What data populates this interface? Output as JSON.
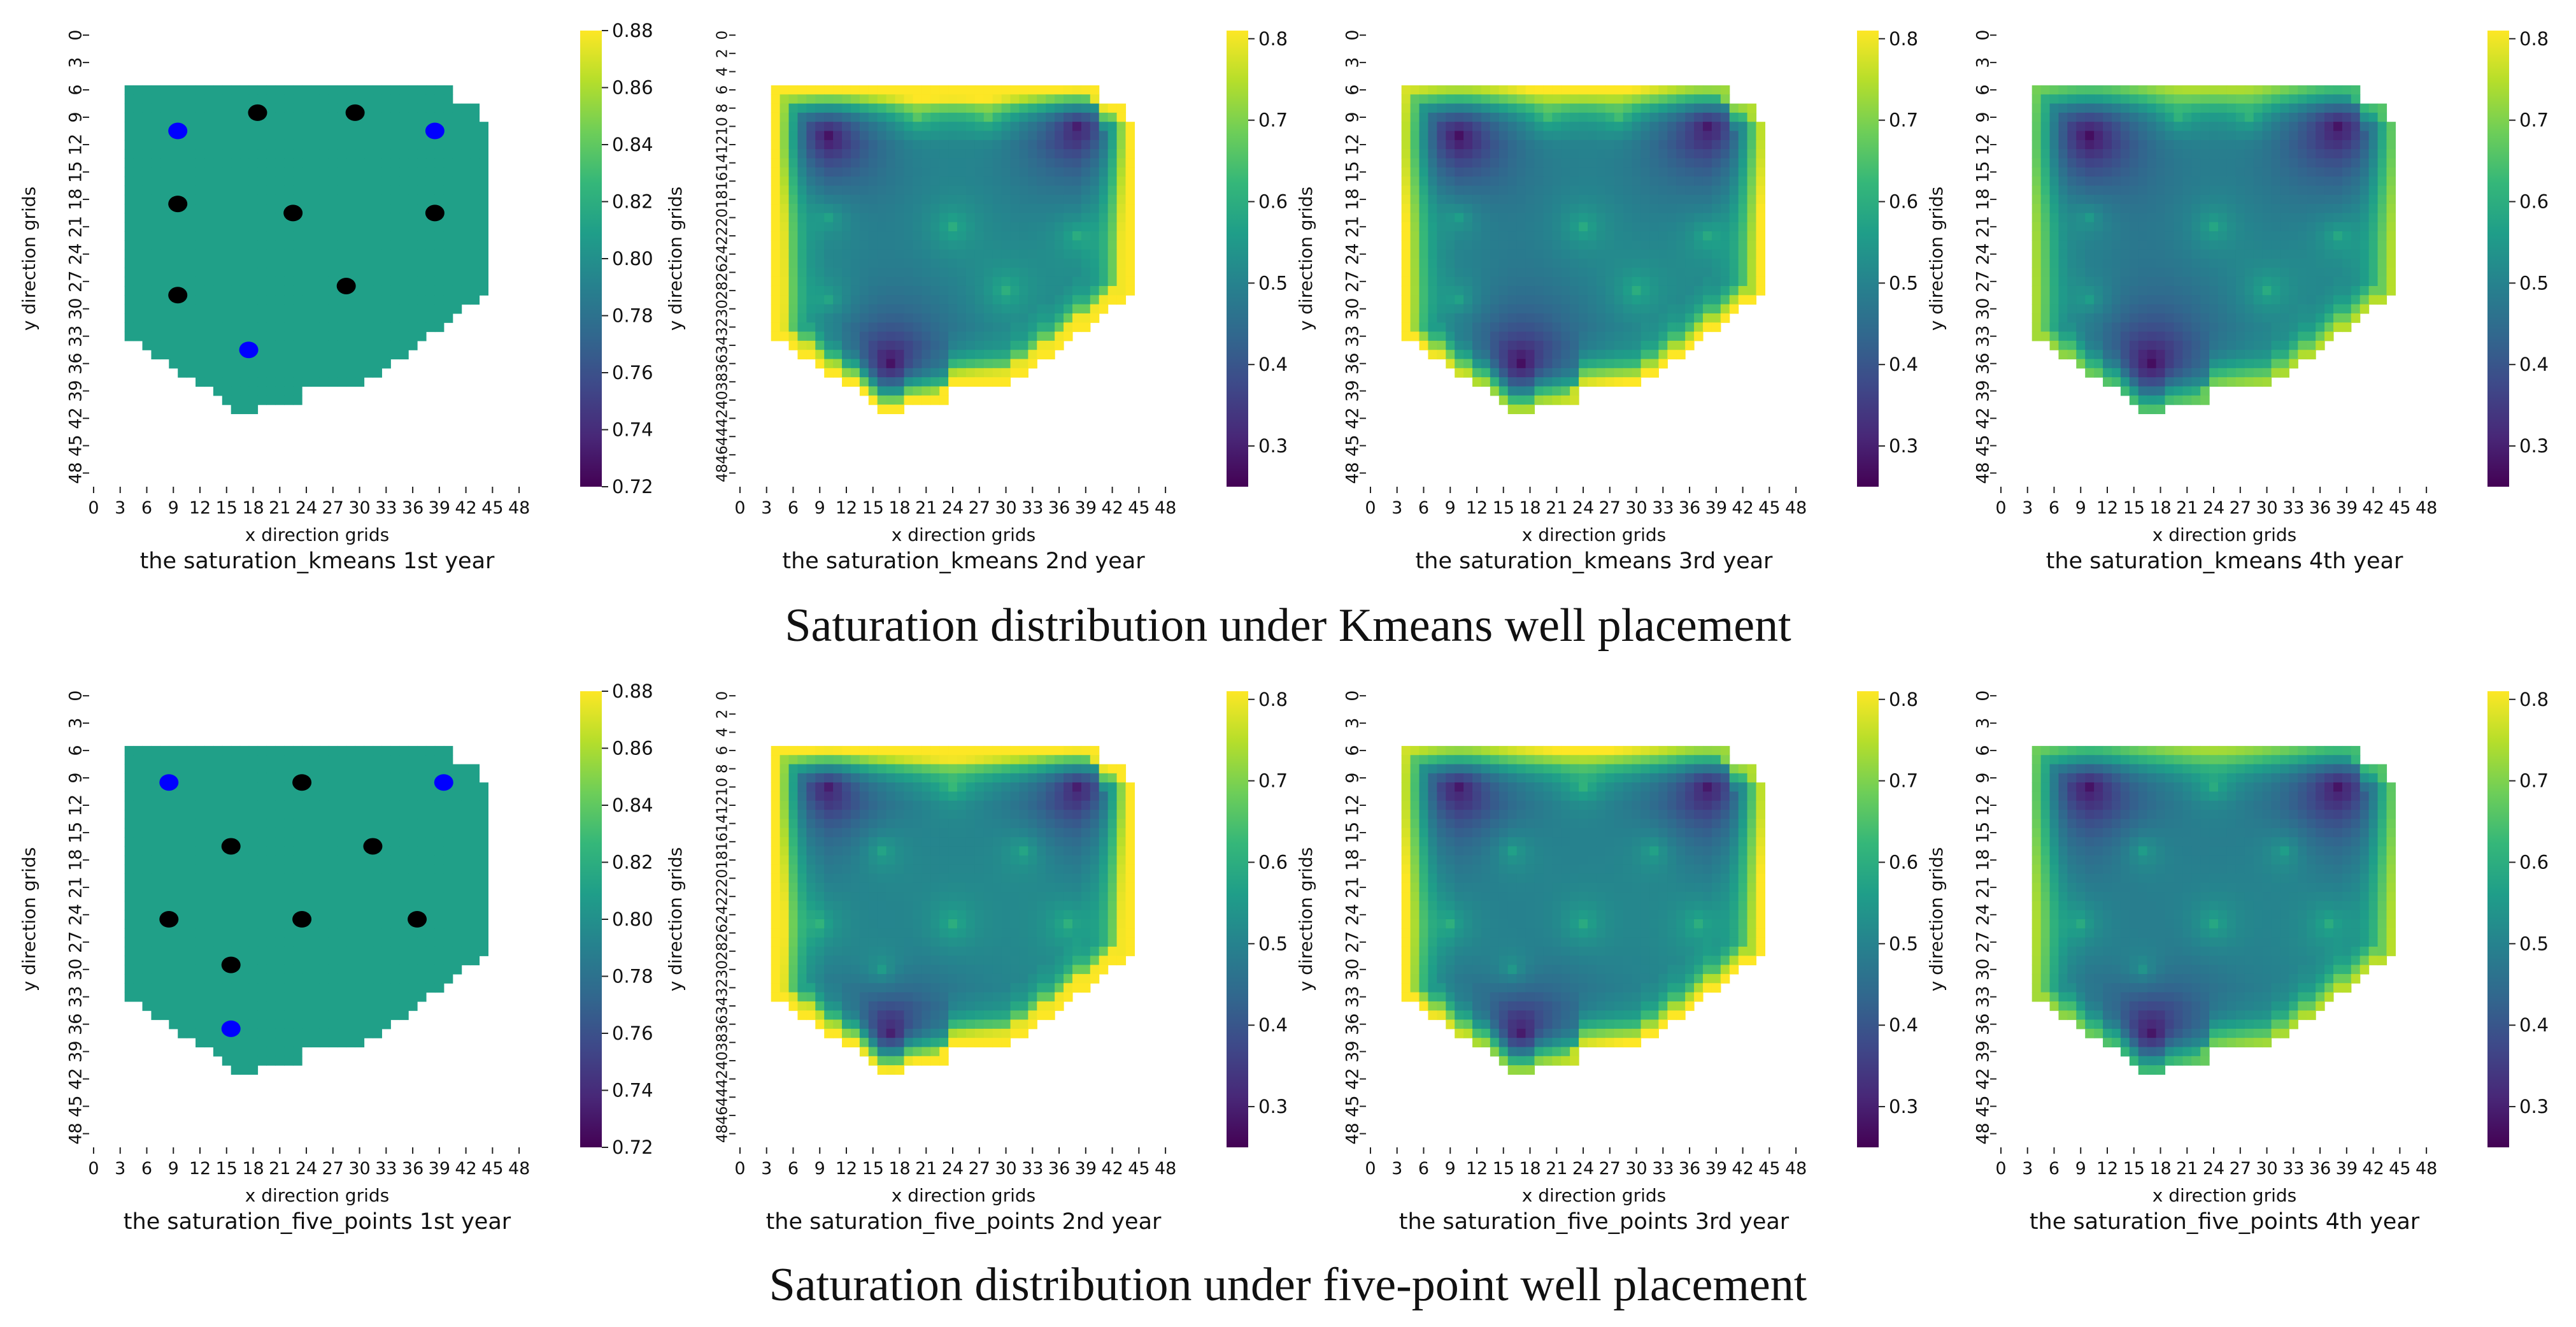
{
  "row_captions": [
    "Saturation distribution under Kmeans well placement",
    "Saturation distribution under five-point well placement"
  ],
  "colormap": [
    "#440154",
    "#482878",
    "#3e4989",
    "#31688e",
    "#26828e",
    "#1f9e89",
    "#35b779",
    "#6ece58",
    "#b5de2b",
    "#fde725"
  ],
  "well_colors": {
    "injector": "#0000ff",
    "producer": "#000000"
  },
  "chart_data": [
    {
      "type": "heatmap",
      "title": "the saturation_kmeans 1st year",
      "xlabel": "x direction grids",
      "ylabel": "y direction grids",
      "xticks": [
        "0",
        "3",
        "6",
        "9",
        "12",
        "15",
        "18",
        "21",
        "24",
        "27",
        "30",
        "33",
        "36",
        "39",
        "42",
        "45",
        "48"
      ],
      "yticks": [
        "0",
        "3",
        "6",
        "9",
        "12",
        "15",
        "18",
        "21",
        "24",
        "27",
        "30",
        "33",
        "36",
        "39",
        "42",
        "45",
        "48"
      ],
      "colorbar": {
        "ticks": [
          "0.88",
          "0.86",
          "0.84",
          "0.82",
          "0.80",
          "0.78",
          "0.76",
          "0.74",
          "0.72"
        ],
        "vmin": 0.72,
        "vmax": 0.88
      },
      "uniform_value": 0.81,
      "wells": {
        "injectors": [
          [
            10,
            11
          ],
          [
            39,
            11
          ],
          [
            18,
            35
          ]
        ],
        "producers": [
          [
            19,
            9
          ],
          [
            30,
            9
          ],
          [
            10,
            19
          ],
          [
            23,
            20
          ],
          [
            39,
            20
          ],
          [
            10,
            29
          ],
          [
            29,
            28
          ]
        ]
      }
    },
    {
      "type": "heatmap",
      "title": "the saturation_kmeans 2nd year",
      "xlabel": "x direction grids",
      "ylabel": "y direction grids",
      "xticks": [
        "0",
        "3",
        "6",
        "9",
        "12",
        "15",
        "18",
        "21",
        "24",
        "27",
        "30",
        "33",
        "36",
        "39",
        "42",
        "45",
        "48"
      ],
      "yticks": [
        "0",
        "2",
        "4",
        "6",
        "8",
        "10",
        "12",
        "14",
        "16",
        "18",
        "20",
        "22",
        "24",
        "26",
        "28",
        "30",
        "32",
        "34",
        "36",
        "38",
        "40",
        "42",
        "44",
        "46",
        "48"
      ],
      "colorbar": {
        "ticks": [
          "0.8",
          "0.7",
          "0.6",
          "0.5",
          "0.4",
          "0.3"
        ],
        "vmin": 0.25,
        "vmax": 0.81
      },
      "injectors": [
        [
          10,
          11
        ],
        [
          38,
          10
        ],
        [
          17,
          36
        ]
      ],
      "producers": [
        [
          20,
          9
        ],
        [
          28,
          9
        ],
        [
          10,
          20
        ],
        [
          24,
          21
        ],
        [
          38,
          22
        ],
        [
          10,
          29
        ],
        [
          30,
          28
        ]
      ],
      "year": 2
    },
    {
      "type": "heatmap",
      "title": "the saturation_kmeans 3rd year",
      "xlabel": "x direction grids",
      "ylabel": "y direction grids",
      "xticks": [
        "0",
        "3",
        "6",
        "9",
        "12",
        "15",
        "18",
        "21",
        "24",
        "27",
        "30",
        "33",
        "36",
        "39",
        "42",
        "45",
        "48"
      ],
      "yticks": [
        "0",
        "3",
        "6",
        "9",
        "12",
        "15",
        "18",
        "21",
        "24",
        "27",
        "30",
        "33",
        "36",
        "39",
        "42",
        "45",
        "48"
      ],
      "colorbar": {
        "ticks": [
          "0.8",
          "0.7",
          "0.6",
          "0.5",
          "0.4",
          "0.3"
        ],
        "vmin": 0.25,
        "vmax": 0.81
      },
      "injectors": [
        [
          10,
          11
        ],
        [
          38,
          10
        ],
        [
          17,
          36
        ]
      ],
      "producers": [
        [
          20,
          9
        ],
        [
          28,
          9
        ],
        [
          10,
          20
        ],
        [
          24,
          21
        ],
        [
          38,
          22
        ],
        [
          10,
          29
        ],
        [
          30,
          28
        ]
      ],
      "year": 3
    },
    {
      "type": "heatmap",
      "title": "the saturation_kmeans 4th year",
      "xlabel": "x direction grids",
      "ylabel": "y direction grids",
      "xticks": [
        "0",
        "3",
        "6",
        "9",
        "12",
        "15",
        "18",
        "21",
        "24",
        "27",
        "30",
        "33",
        "36",
        "39",
        "42",
        "45",
        "48"
      ],
      "yticks": [
        "0",
        "3",
        "6",
        "9",
        "12",
        "15",
        "18",
        "21",
        "24",
        "27",
        "30",
        "33",
        "36",
        "39",
        "42",
        "45",
        "48"
      ],
      "colorbar": {
        "ticks": [
          "0.8",
          "0.7",
          "0.6",
          "0.5",
          "0.4",
          "0.3"
        ],
        "vmin": 0.25,
        "vmax": 0.81
      },
      "injectors": [
        [
          10,
          11
        ],
        [
          38,
          10
        ],
        [
          17,
          36
        ]
      ],
      "producers": [
        [
          20,
          9
        ],
        [
          28,
          9
        ],
        [
          10,
          20
        ],
        [
          24,
          21
        ],
        [
          38,
          22
        ],
        [
          10,
          29
        ],
        [
          30,
          28
        ]
      ],
      "year": 4
    },
    {
      "type": "heatmap",
      "title": "the saturation_five_points 1st year",
      "xlabel": "x direction grids",
      "ylabel": "y direction grids",
      "xticks": [
        "0",
        "3",
        "6",
        "9",
        "12",
        "15",
        "18",
        "21",
        "24",
        "27",
        "30",
        "33",
        "36",
        "39",
        "42",
        "45",
        "48"
      ],
      "yticks": [
        "0",
        "3",
        "6",
        "9",
        "12",
        "15",
        "18",
        "21",
        "24",
        "27",
        "30",
        "33",
        "36",
        "39",
        "42",
        "45",
        "48"
      ],
      "colorbar": {
        "ticks": [
          "0.88",
          "0.86",
          "0.84",
          "0.82",
          "0.80",
          "0.78",
          "0.76",
          "0.74",
          "0.72"
        ],
        "vmin": 0.72,
        "vmax": 0.88
      },
      "uniform_value": 0.81,
      "wells": {
        "injectors": [
          [
            9,
            10
          ],
          [
            40,
            10
          ],
          [
            16,
            37
          ]
        ],
        "producers": [
          [
            24,
            10
          ],
          [
            16,
            17
          ],
          [
            32,
            17
          ],
          [
            9,
            25
          ],
          [
            24,
            25
          ],
          [
            37,
            25
          ],
          [
            16,
            30
          ]
        ]
      }
    },
    {
      "type": "heatmap",
      "title": "the saturation_five_points 2nd year",
      "xlabel": "x direction grids",
      "ylabel": "y direction grids",
      "xticks": [
        "0",
        "3",
        "6",
        "9",
        "12",
        "15",
        "18",
        "21",
        "24",
        "27",
        "30",
        "33",
        "36",
        "39",
        "42",
        "45",
        "48"
      ],
      "yticks": [
        "0",
        "2",
        "4",
        "6",
        "8",
        "10",
        "12",
        "14",
        "16",
        "18",
        "20",
        "22",
        "24",
        "26",
        "28",
        "30",
        "32",
        "34",
        "36",
        "38",
        "40",
        "42",
        "44",
        "46",
        "48"
      ],
      "colorbar": {
        "ticks": [
          "0.8",
          "0.7",
          "0.6",
          "0.5",
          "0.4",
          "0.3"
        ],
        "vmin": 0.25,
        "vmax": 0.81
      },
      "injectors": [
        [
          10,
          10
        ],
        [
          38,
          10
        ],
        [
          17,
          37
        ]
      ],
      "producers": [
        [
          24,
          10
        ],
        [
          16,
          17
        ],
        [
          32,
          17
        ],
        [
          9,
          25
        ],
        [
          24,
          25
        ],
        [
          37,
          25
        ],
        [
          16,
          30
        ]
      ],
      "year": 2
    },
    {
      "type": "heatmap",
      "title": "the saturation_five_points 3rd year",
      "xlabel": "x direction grids",
      "ylabel": "y direction grids",
      "xticks": [
        "0",
        "3",
        "6",
        "9",
        "12",
        "15",
        "18",
        "21",
        "24",
        "27",
        "30",
        "33",
        "36",
        "39",
        "42",
        "45",
        "48"
      ],
      "yticks": [
        "0",
        "3",
        "6",
        "9",
        "12",
        "15",
        "18",
        "21",
        "24",
        "27",
        "30",
        "33",
        "36",
        "39",
        "42",
        "45",
        "48"
      ],
      "colorbar": {
        "ticks": [
          "0.8",
          "0.7",
          "0.6",
          "0.5",
          "0.4",
          "0.3"
        ],
        "vmin": 0.25,
        "vmax": 0.81
      },
      "injectors": [
        [
          10,
          10
        ],
        [
          38,
          10
        ],
        [
          17,
          37
        ]
      ],
      "producers": [
        [
          24,
          10
        ],
        [
          16,
          17
        ],
        [
          32,
          17
        ],
        [
          9,
          25
        ],
        [
          24,
          25
        ],
        [
          37,
          25
        ],
        [
          16,
          30
        ]
      ],
      "year": 3
    },
    {
      "type": "heatmap",
      "title": "the saturation_five_points 4th year",
      "xlabel": "x direction grids",
      "ylabel": "y direction grids",
      "xticks": [
        "0",
        "3",
        "6",
        "9",
        "12",
        "15",
        "18",
        "21",
        "24",
        "27",
        "30",
        "33",
        "36",
        "39",
        "42",
        "45",
        "48"
      ],
      "yticks": [
        "0",
        "3",
        "6",
        "9",
        "12",
        "15",
        "18",
        "21",
        "24",
        "27",
        "30",
        "33",
        "36",
        "39",
        "42",
        "45",
        "48"
      ],
      "colorbar": {
        "ticks": [
          "0.8",
          "0.7",
          "0.6",
          "0.5",
          "0.4",
          "0.3"
        ],
        "vmin": 0.25,
        "vmax": 0.81
      },
      "injectors": [
        [
          10,
          10
        ],
        [
          38,
          10
        ],
        [
          17,
          37
        ]
      ],
      "producers": [
        [
          24,
          10
        ],
        [
          16,
          17
        ],
        [
          32,
          17
        ],
        [
          9,
          25
        ],
        [
          24,
          25
        ],
        [
          37,
          25
        ],
        [
          16,
          30
        ]
      ],
      "year": 4
    }
  ]
}
